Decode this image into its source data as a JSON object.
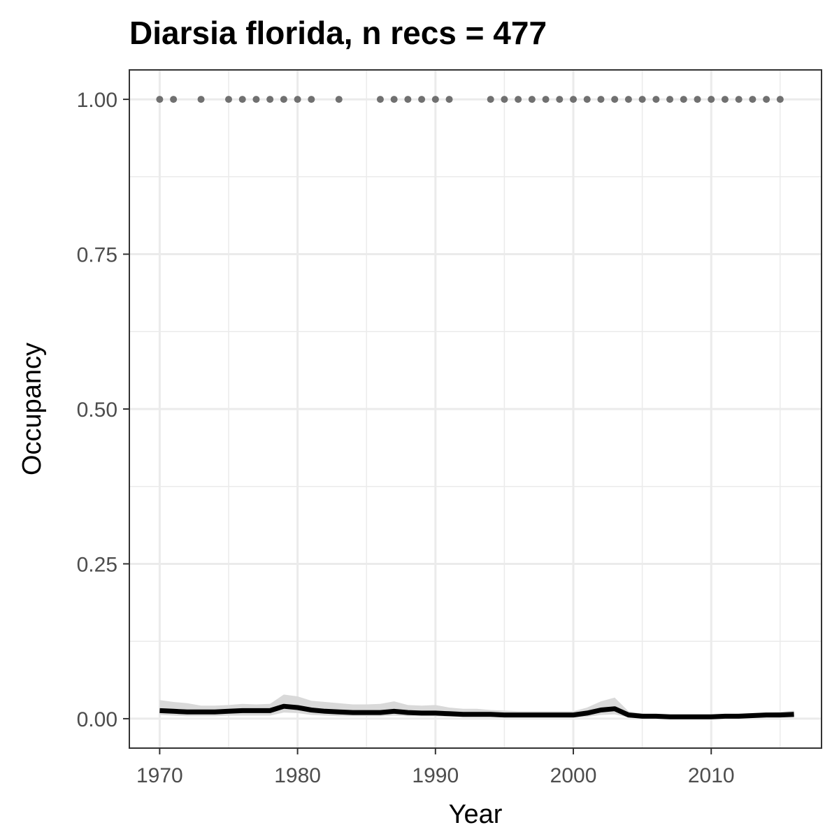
{
  "chart_data": {
    "type": "line",
    "title": "Diarsia florida, n recs = 477",
    "xlabel": "Year",
    "ylabel": "Occupancy",
    "xlim": [
      1967.8,
      2018
    ],
    "ylim": [
      -0.0475,
      1.0475
    ],
    "x_ticks": [
      1970,
      1980,
      1990,
      2000,
      2010
    ],
    "x_tick_labels": [
      "1970",
      "1980",
      "1990",
      "2000",
      "2010"
    ],
    "y_ticks": [
      0,
      0.25,
      0.5,
      0.75,
      1
    ],
    "y_tick_labels": [
      "0.00",
      "0.25",
      "0.50",
      "0.75",
      "1.00"
    ],
    "grid": true,
    "legend": "none",
    "colors": {
      "line": "#000000",
      "ribbon": "#d9d9d9",
      "points": "#707070",
      "grid": "#ebebeb",
      "border": "#333333"
    },
    "observed_years": [
      1970,
      1971,
      1973,
      1975,
      1976,
      1977,
      1978,
      1979,
      1980,
      1981,
      1983,
      1986,
      1987,
      1988,
      1989,
      1990,
      1991,
      1994,
      1995,
      1996,
      1997,
      1998,
      1999,
      2000,
      2001,
      2002,
      2003,
      2004,
      2005,
      2006,
      2007,
      2008,
      2009,
      2010,
      2011,
      2012,
      2013,
      2014,
      2015
    ],
    "observed_value": 1.0,
    "series": [
      {
        "x": [
          1970,
          1971,
          1972,
          1973,
          1974,
          1975,
          1976,
          1977,
          1978,
          1979,
          1980,
          1981,
          1982,
          1983,
          1984,
          1985,
          1986,
          1987,
          1988,
          1989,
          1990,
          1991,
          1992,
          1993,
          1994,
          1995,
          1996,
          1997,
          1998,
          1999,
          2000,
          2001,
          2002,
          2003,
          2004,
          2005,
          2006,
          2007,
          2008,
          2009,
          2010,
          2011,
          2012,
          2013,
          2014,
          2015,
          2016
        ],
        "values": [
          0.013,
          0.012,
          0.011,
          0.011,
          0.011,
          0.012,
          0.013,
          0.013,
          0.013,
          0.02,
          0.018,
          0.014,
          0.012,
          0.011,
          0.01,
          0.01,
          0.01,
          0.012,
          0.01,
          0.009,
          0.009,
          0.008,
          0.007,
          0.007,
          0.007,
          0.006,
          0.006,
          0.006,
          0.006,
          0.006,
          0.006,
          0.009,
          0.014,
          0.016,
          0.006,
          0.004,
          0.004,
          0.003,
          0.003,
          0.003,
          0.003,
          0.004,
          0.004,
          0.005,
          0.006,
          0.006,
          0.007
        ],
        "lower": [
          0.006,
          0.005,
          0.004,
          0.004,
          0.004,
          0.005,
          0.005,
          0.005,
          0.005,
          0.01,
          0.009,
          0.006,
          0.005,
          0.004,
          0.004,
          0.004,
          0.004,
          0.005,
          0.004,
          0.004,
          0.004,
          0.003,
          0.003,
          0.003,
          0.003,
          0.002,
          0.002,
          0.002,
          0.002,
          0.002,
          0.002,
          0.003,
          0.006,
          0.007,
          0.002,
          0.001,
          0.001,
          0.001,
          0.001,
          0.001,
          0.001,
          0.001,
          0.001,
          0.002,
          0.002,
          0.002,
          0.002
        ],
        "upper": [
          0.03,
          0.027,
          0.025,
          0.021,
          0.021,
          0.022,
          0.024,
          0.023,
          0.024,
          0.039,
          0.036,
          0.029,
          0.027,
          0.025,
          0.023,
          0.023,
          0.024,
          0.028,
          0.022,
          0.021,
          0.022,
          0.018,
          0.016,
          0.016,
          0.014,
          0.013,
          0.012,
          0.012,
          0.012,
          0.012,
          0.012,
          0.018,
          0.028,
          0.034,
          0.012,
          0.008,
          0.007,
          0.006,
          0.006,
          0.006,
          0.006,
          0.007,
          0.008,
          0.009,
          0.01,
          0.011,
          0.013
        ]
      }
    ]
  }
}
